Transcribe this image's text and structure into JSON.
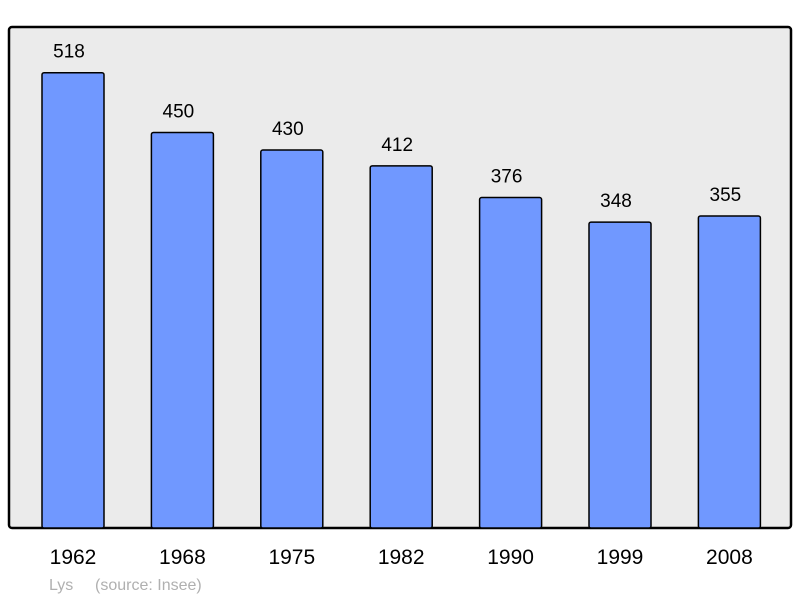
{
  "chart_data": {
    "type": "bar",
    "categories": [
      "1962",
      "1968",
      "1975",
      "1982",
      "1990",
      "1999",
      "2008"
    ],
    "values": [
      518,
      450,
      430,
      412,
      376,
      348,
      355
    ],
    "data_labels": [
      "518",
      "450",
      "430",
      "412",
      "376",
      "348",
      "355"
    ],
    "title": "",
    "xlabel": "",
    "ylabel": "",
    "ylim": [
      0,
      570
    ],
    "grid": false,
    "colors": {
      "bar": "#7098ff",
      "plot_background": "#ebebeb",
      "frame": "#000000"
    }
  },
  "footer": {
    "place": "Lys",
    "source": "(source: Insee)"
  }
}
